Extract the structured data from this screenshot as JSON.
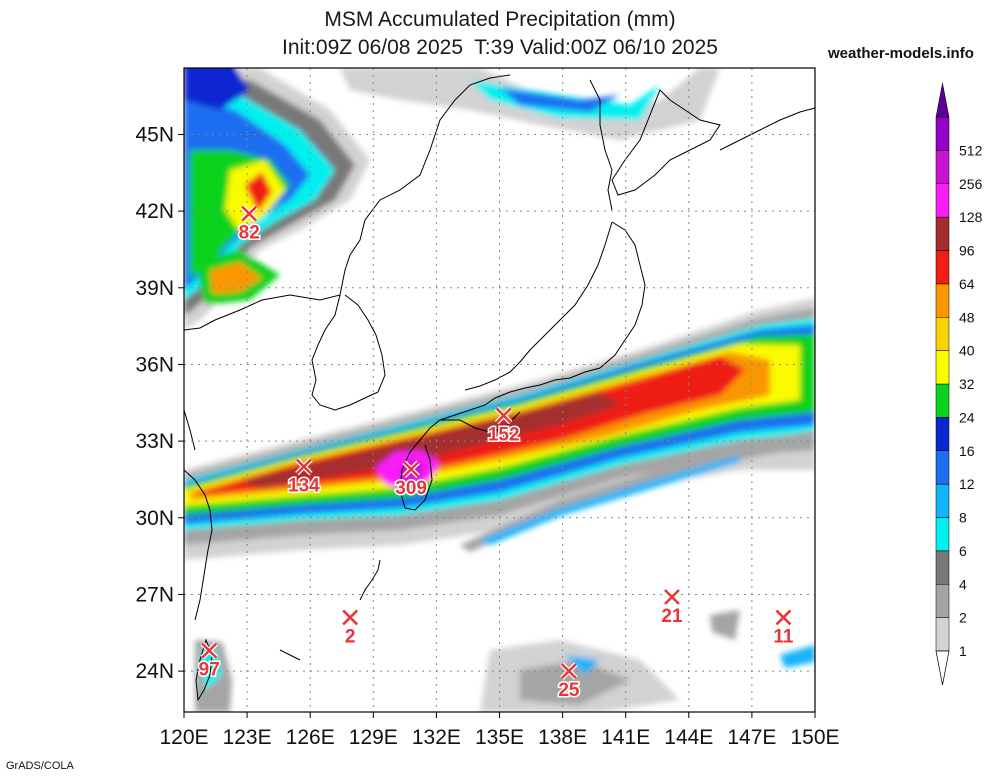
{
  "title": {
    "line1": "MSM Accumulated Precipitation (mm)",
    "line2": "Init:09Z 06/08 2025  T:39 Valid:00Z 06/10 2025"
  },
  "source": "weather-models.info",
  "credit": "GrADS/COLA",
  "map": {
    "lon_range": [
      120,
      150
    ],
    "lat_range": [
      22.4,
      47.6
    ],
    "lat_ticks": [
      {
        "value": 45,
        "label": "45N"
      },
      {
        "value": 42,
        "label": "42N"
      },
      {
        "value": 39,
        "label": "39N"
      },
      {
        "value": 36,
        "label": "36N"
      },
      {
        "value": 33,
        "label": "33N"
      },
      {
        "value": 30,
        "label": "30N"
      },
      {
        "value": 27,
        "label": "27N"
      },
      {
        "value": 24,
        "label": "24N"
      }
    ],
    "lon_ticks": [
      {
        "value": 120,
        "label": "120E"
      },
      {
        "value": 123,
        "label": "123E"
      },
      {
        "value": 126,
        "label": "126E"
      },
      {
        "value": 129,
        "label": "129E"
      },
      {
        "value": 132,
        "label": "132E"
      },
      {
        "value": 135,
        "label": "135E"
      },
      {
        "value": 138,
        "label": "138E"
      },
      {
        "value": 141,
        "label": "141E"
      },
      {
        "value": 144,
        "label": "144E"
      },
      {
        "value": 147,
        "label": "147E"
      },
      {
        "value": 150,
        "label": "150E"
      }
    ],
    "grid": true
  },
  "markers": [
    {
      "lon": 123.1,
      "lat": 41.9,
      "value": "82"
    },
    {
      "lon": 125.7,
      "lat": 32.0,
      "value": "134"
    },
    {
      "lon": 130.8,
      "lat": 31.9,
      "value": "309"
    },
    {
      "lon": 135.2,
      "lat": 34.0,
      "value": "152"
    },
    {
      "lon": 127.9,
      "lat": 26.1,
      "value": "2"
    },
    {
      "lon": 121.2,
      "lat": 24.8,
      "value": "97"
    },
    {
      "lon": 138.3,
      "lat": 24.0,
      "value": "25"
    },
    {
      "lon": 143.2,
      "lat": 26.9,
      "value": "21"
    },
    {
      "lon": 148.5,
      "lat": 26.1,
      "value": "11"
    }
  ],
  "colorbar": {
    "levels": [
      {
        "label": "1",
        "color": "#d2d2d2"
      },
      {
        "label": "2",
        "color": "#a5a5a5"
      },
      {
        "label": "4",
        "color": "#787878"
      },
      {
        "label": "6",
        "color": "#00f0f0"
      },
      {
        "label": "8",
        "color": "#14b4fa"
      },
      {
        "label": "12",
        "color": "#1e6ef0"
      },
      {
        "label": "16",
        "color": "#0a28d2"
      },
      {
        "label": "24",
        "color": "#0ad21e"
      },
      {
        "label": "32",
        "color": "#fafa00"
      },
      {
        "label": "40",
        "color": "#fad200"
      },
      {
        "label": "48",
        "color": "#fa9600"
      },
      {
        "label": "64",
        "color": "#f01e14"
      },
      {
        "label": "96",
        "color": "#a52d2d"
      },
      {
        "label": "128",
        "color": "#fa1efa"
      },
      {
        "label": "256",
        "color": "#c814d2"
      },
      {
        "label": "512",
        "color": "#9600c8"
      }
    ],
    "top_color": "#5a0096"
  }
}
